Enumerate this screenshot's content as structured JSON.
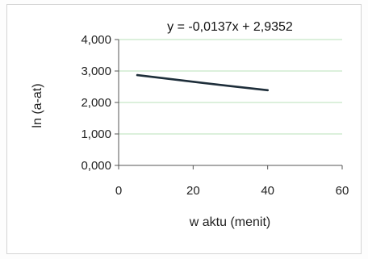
{
  "chart_data": {
    "type": "line",
    "title": "y = -0,0137x + 2,9352",
    "xlabel": "w aktu (menit)",
    "ylabel": "ln (a-at)",
    "xlim": [
      0,
      60
    ],
    "ylim": [
      0,
      4
    ],
    "x_ticks": [
      0,
      20,
      40,
      60
    ],
    "x_tick_labels": [
      "0",
      "20",
      "40",
      "60"
    ],
    "y_ticks": [
      0,
      1,
      2,
      3,
      4
    ],
    "y_tick_labels": [
      "0,000",
      "1,000",
      "2,000",
      "3,000",
      "4,000"
    ],
    "grid": true,
    "series": [
      {
        "x": [
          5,
          10,
          20,
          30,
          40
        ],
        "y": [
          2.87,
          2.8,
          2.66,
          2.52,
          2.39
        ]
      }
    ],
    "colors": {
      "line": "#1e2e3a",
      "gridline": "#b8e0b8",
      "ylabel": "#3a9a3a"
    }
  }
}
